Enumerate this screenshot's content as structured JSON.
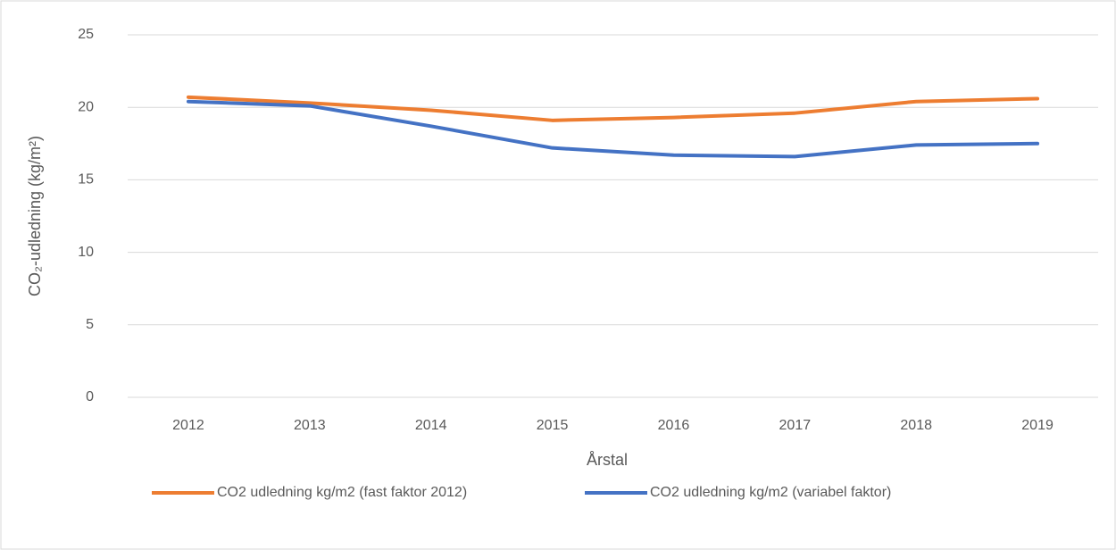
{
  "chart_data": {
    "type": "line",
    "x_label": "Årstal",
    "y_label": "CO₂-udledning (kg/m²)",
    "categories": [
      "2012",
      "2013",
      "2014",
      "2015",
      "2016",
      "2017",
      "2018",
      "2019"
    ],
    "series": [
      {
        "name": "CO2 udledning kg/m2 (fast faktor 2012)",
        "color": "#ed7d31",
        "values": [
          20.7,
          20.3,
          19.8,
          19.1,
          19.3,
          19.6,
          20.4,
          20.6
        ]
      },
      {
        "name": "CO2 udledning kg/m2 (variabel faktor)",
        "color": "#4472c4",
        "values": [
          20.4,
          20.1,
          18.7,
          17.2,
          16.7,
          16.6,
          17.4,
          17.5
        ]
      }
    ],
    "ylim": [
      0,
      25
    ],
    "yticks": [
      0,
      5,
      10,
      15,
      20,
      25
    ],
    "grid": true,
    "legend": "bottom"
  }
}
